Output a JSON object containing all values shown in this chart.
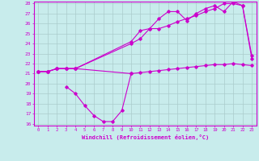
{
  "xlabel": "Windchill (Refroidissement éolien,°C)",
  "bg_color": "#c8ecec",
  "line_color": "#cc00cc",
  "grid_color": "#aacccc",
  "xlim": [
    -0.5,
    23.5
  ],
  "ylim": [
    15.8,
    28.2
  ],
  "yticks": [
    16,
    17,
    18,
    19,
    20,
    21,
    22,
    23,
    24,
    25,
    26,
    27,
    28
  ],
  "xticks": [
    0,
    1,
    2,
    3,
    4,
    5,
    6,
    7,
    8,
    9,
    10,
    11,
    12,
    13,
    14,
    15,
    16,
    17,
    18,
    19,
    20,
    21,
    22,
    23
  ],
  "series1_x": [
    0,
    1,
    2,
    3,
    4,
    10,
    11,
    12,
    13,
    14,
    15,
    16,
    17,
    18,
    19,
    20,
    21,
    22,
    23
  ],
  "series1_y": [
    21.2,
    21.2,
    21.5,
    21.5,
    21.5,
    21.0,
    21.1,
    21.2,
    21.3,
    21.4,
    21.5,
    21.6,
    21.7,
    21.8,
    21.9,
    21.9,
    22.0,
    21.9,
    21.8
  ],
  "series2_x": [
    0,
    1,
    2,
    3,
    4,
    10,
    11,
    12,
    13,
    14,
    15,
    16,
    17,
    18,
    19,
    20,
    21,
    22,
    23
  ],
  "series2_y": [
    21.2,
    21.2,
    21.5,
    21.5,
    21.5,
    24.0,
    24.5,
    25.5,
    25.5,
    25.8,
    26.2,
    26.5,
    26.8,
    27.2,
    27.5,
    28.0,
    28.0,
    27.8,
    22.5
  ],
  "series3_x": [
    0,
    1,
    2,
    3,
    4,
    10,
    11,
    12,
    13,
    14,
    15,
    16,
    17,
    18,
    19,
    20,
    21,
    22,
    23
  ],
  "series3_y": [
    21.2,
    21.2,
    21.5,
    21.5,
    21.5,
    24.2,
    25.3,
    25.5,
    26.5,
    27.2,
    27.2,
    26.3,
    27.0,
    27.5,
    27.8,
    27.2,
    28.2,
    27.8,
    22.8
  ],
  "series4_x": [
    3,
    4,
    5,
    6,
    7,
    8,
    9,
    10
  ],
  "series4_y": [
    19.7,
    19.0,
    17.8,
    16.8,
    16.2,
    16.2,
    17.3,
    21.0
  ]
}
